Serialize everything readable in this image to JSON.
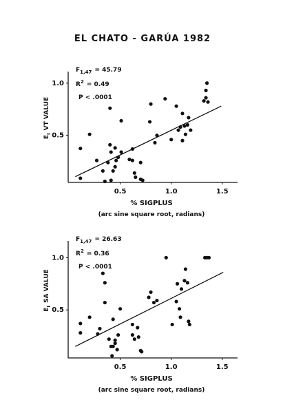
{
  "title": "EL CHATO - GARÚA 1982",
  "chart_data": [
    {
      "type": "scatter",
      "stats": [
        {
          "symbol": "F",
          "subscript": "1,47",
          "text": "= 45.79"
        },
        {
          "symbol": "R",
          "superscript": "2",
          "text": "= 0.49"
        },
        {
          "text": "P <  .0001"
        }
      ],
      "y_label": {
        "symbol": "E",
        "subscript": "I",
        "text": "VT VALUE"
      },
      "x_label": "% SIGPLUS",
      "x_note": "(arc sine square root, radians)",
      "xlim": [
        -0.01,
        1.65
      ],
      "xticks": [
        0.5,
        {
          "value": 1,
          "label": "1.0"
        },
        1.5
      ],
      "ylim": [
        0.05,
        1.15
      ],
      "yticks": [
        0.5,
        {
          "value": 1,
          "label": "1.0"
        }
      ],
      "color": "#111111",
      "x": [
        0.11,
        0.11,
        0.2,
        0.27,
        0.33,
        0.35,
        0.38,
        0.4,
        0.4,
        0.41,
        0.41,
        0.43,
        0.45,
        0.45,
        0.46,
        0.48,
        0.51,
        0.51,
        0.59,
        0.62,
        0.62,
        0.64,
        0.65,
        0.7,
        0.7,
        0.72,
        0.79,
        0.8,
        0.84,
        0.86,
        0.94,
        1.0,
        1.05,
        1.07,
        1.09,
        1.11,
        1.11,
        1.13,
        1.14,
        1.16,
        1.17,
        1.19,
        1.32,
        1.34,
        1.34,
        1.35,
        1.36
      ],
      "values": [
        0.375,
        0.09,
        0.51,
        0.26,
        0.16,
        0.06,
        0.24,
        0.41,
        0.76,
        0.34,
        0.07,
        0.16,
        0.2,
        0.38,
        0.26,
        0.29,
        0.64,
        0.34,
        0.27,
        0.37,
        0.26,
        0.14,
        0.1,
        0.24,
        0.08,
        0.07,
        0.63,
        0.8,
        0.43,
        0.5,
        0.85,
        0.46,
        0.78,
        0.55,
        0.58,
        0.71,
        0.45,
        0.59,
        0.51,
        0.6,
        0.67,
        0.55,
        0.83,
        0.86,
        0.93,
        1.0,
        0.82
      ],
      "fit_line": {
        "x": [
          0.06,
          1.49
        ],
        "y": [
          0.105,
          0.78
        ]
      }
    },
    {
      "type": "scatter",
      "stats": [
        {
          "symbol": "F",
          "subscript": "1,47",
          "text": "= 26.63"
        },
        {
          "symbol": "R",
          "superscript": "2",
          "text": "= 0.36"
        },
        {
          "text": "P <  .0001"
        }
      ],
      "y_label": {
        "symbol": "E",
        "subscript": "I",
        "text": "SA VALUE"
      },
      "x_label": "% SIGPLUS",
      "x_note": "(arc sine square root, radians)",
      "xlim": [
        -0.01,
        1.65
      ],
      "xticks": [
        0.5,
        {
          "value": 1,
          "label": "1.0"
        },
        1.5
      ],
      "ylim": [
        0.04,
        1.2
      ],
      "yticks": [
        0.5,
        {
          "value": 1,
          "label": "1.0"
        }
      ],
      "color": "#111111",
      "x": [
        0.11,
        0.11,
        0.2,
        0.28,
        0.3,
        0.33,
        0.35,
        0.35,
        0.39,
        0.41,
        0.42,
        0.43,
        0.43,
        0.45,
        0.45,
        0.47,
        0.48,
        0.5,
        0.62,
        0.62,
        0.64,
        0.67,
        0.68,
        0.7,
        0.71,
        0.78,
        0.8,
        0.83,
        0.86,
        0.95,
        1.01,
        1.05,
        1.06,
        1.08,
        1.09,
        1.1,
        1.13,
        1.14,
        1.16,
        1.17,
        1.18,
        1.33,
        1.35,
        1.37
      ],
      "values": [
        0.37,
        0.28,
        0.43,
        0.27,
        0.32,
        0.85,
        0.76,
        0.57,
        0.22,
        0.15,
        0.06,
        0.41,
        0.15,
        0.21,
        0.18,
        0.12,
        0.26,
        0.51,
        0.36,
        0.26,
        0.22,
        0.33,
        0.24,
        0.11,
        0.1,
        0.62,
        0.67,
        0.57,
        0.59,
        1.0,
        0.36,
        0.58,
        0.75,
        0.51,
        0.43,
        0.7,
        0.78,
        0.89,
        0.76,
        0.39,
        0.36,
        1.0,
        1.0,
        1.0
      ],
      "fit_line": {
        "x": [
          0.06,
          1.51
        ],
        "y": [
          0.15,
          0.86
        ]
      }
    }
  ]
}
